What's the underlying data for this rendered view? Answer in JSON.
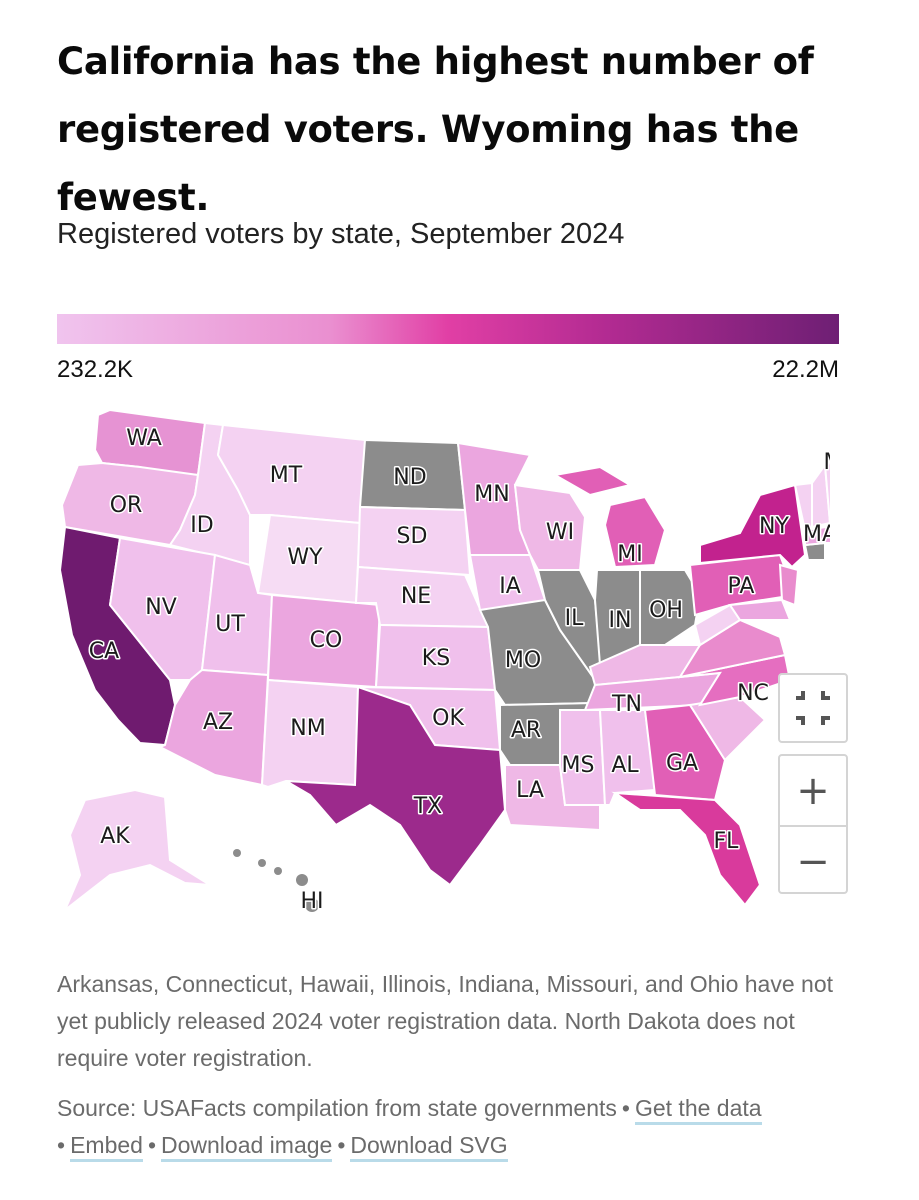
{
  "header": {
    "title": "California has the highest number of registered voters. Wyoming has the fewest.",
    "subtitle": "Registered voters by state, September 2024"
  },
  "legend": {
    "min_label": "232.2K",
    "max_label": "22.2M"
  },
  "colors": {
    "scale_low": "#f0c4ee",
    "scale_mid": "#e13fa5",
    "scale_high": "#6e1f74",
    "no_data": "#8c8c8c",
    "link_underline": "#b9dbe9"
  },
  "map": {
    "states": {
      "WA": "WA",
      "OR": "OR",
      "CA": "CA",
      "ID": "ID",
      "NV": "NV",
      "MT": "MT",
      "WY": "WY",
      "UT": "UT",
      "AZ": "AZ",
      "CO": "CO",
      "NM": "NM",
      "ND": "ND",
      "SD": "SD",
      "NE": "NE",
      "KS": "KS",
      "OK": "OK",
      "TX": "TX",
      "MN": "MN",
      "IA": "IA",
      "MO": "MO",
      "AR": "AR",
      "LA": "LA",
      "WI": "WI",
      "IL": "IL",
      "MI": "MI",
      "IN": "IN",
      "OH": "OH",
      "MS": "MS",
      "AL": "AL",
      "TN": "TN",
      "GA": "GA",
      "FL": "FL",
      "NC": "NC",
      "PA": "PA",
      "NY": "NY",
      "MA": "MA",
      "ME": "ME",
      "AK": "AK",
      "HI": "HI"
    },
    "no_data_states": [
      "AR",
      "CT",
      "HI",
      "IL",
      "IN",
      "MO",
      "OH",
      "ND"
    ]
  },
  "controls": {
    "fit_icon": "fit-to-screen-icon",
    "zoom_in_label": "+",
    "zoom_out_label": "−"
  },
  "footnote": "Arkansas, Connecticut, Hawaii, Illinois, Indiana, Missouri, and Ohio have not yet publicly released 2024 voter registration data. North Dakota does not require voter registration.",
  "source": {
    "text": "Source: USAFacts compilation from state governments",
    "links": [
      "Get the data",
      "Embed",
      "Download image",
      "Download SVG"
    ]
  }
}
